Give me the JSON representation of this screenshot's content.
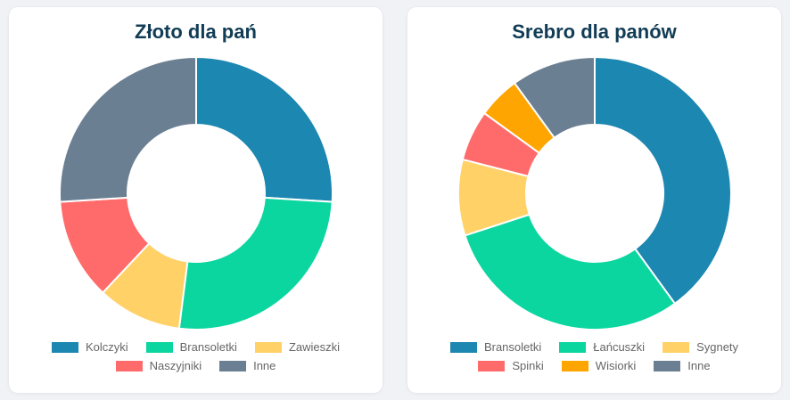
{
  "page": {
    "background_color": "#f0f2f5",
    "card_color": "#ffffff",
    "title_color": "#113c55",
    "legend_text_color": "#666666"
  },
  "chart_data": [
    {
      "type": "pie",
      "variant": "doughnut",
      "title": "Złoto dla pań",
      "categories": [
        "Kolczyki",
        "Bransoletki",
        "Zawieszki",
        "Naszyjniki",
        "Inne"
      ],
      "values": [
        26,
        26,
        10,
        12,
        26
      ],
      "unit": "percent",
      "colors": [
        "#1c87b0",
        "#0bd6a0",
        "#ffd166",
        "#ff6b6b",
        "#6b7f92"
      ],
      "start_angle_deg": 0,
      "direction": "clockwise",
      "cutout_percent": 50,
      "border_color": "#ffffff",
      "legend_position": "bottom"
    },
    {
      "type": "pie",
      "variant": "doughnut",
      "title": "Srebro dla panów",
      "categories": [
        "Bransoletki",
        "Łańcuszki",
        "Sygnety",
        "Spinki",
        "Wisiorki",
        "Inne"
      ],
      "values": [
        40,
        30,
        9,
        6,
        5,
        10
      ],
      "unit": "percent",
      "colors": [
        "#1c87b0",
        "#0bd6a0",
        "#ffd166",
        "#ff6b6b",
        "#ffa502",
        "#6b7f92"
      ],
      "start_angle_deg": 0,
      "direction": "clockwise",
      "cutout_percent": 50,
      "border_color": "#ffffff",
      "legend_position": "bottom"
    }
  ]
}
